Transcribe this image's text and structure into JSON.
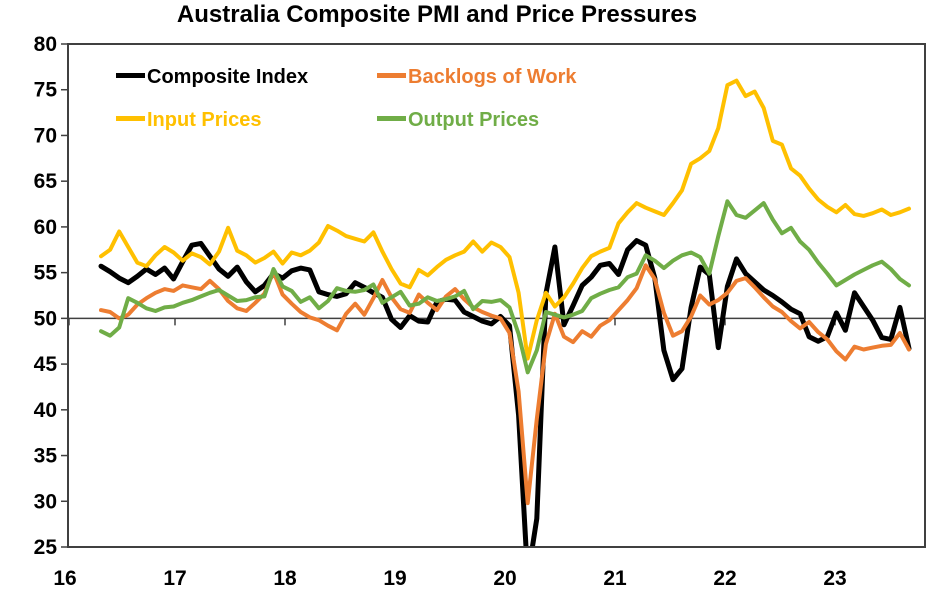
{
  "title": "Australia Composite PMI and Price Pressures",
  "chart_data": {
    "type": "line",
    "frequency": "monthly",
    "x_start": "2016-05",
    "x_end": "2023-10",
    "x_tick_labels": [
      "16",
      "17",
      "18",
      "19",
      "20",
      "21",
      "22",
      "23"
    ],
    "ylim": [
      25,
      80
    ],
    "y_ticks": [
      25,
      30,
      35,
      40,
      45,
      50,
      55,
      60,
      65,
      70,
      75,
      80
    ],
    "reference_line_y": 50,
    "grid": false,
    "legend_position": "top-left-inside",
    "axis_color": "#404040",
    "x": [
      "2016-05",
      "2016-06",
      "2016-07",
      "2016-08",
      "2016-09",
      "2016-10",
      "2016-11",
      "2016-12",
      "2017-01",
      "2017-02",
      "2017-03",
      "2017-04",
      "2017-05",
      "2017-06",
      "2017-07",
      "2017-08",
      "2017-09",
      "2017-10",
      "2017-11",
      "2017-12",
      "2018-01",
      "2018-02",
      "2018-03",
      "2018-04",
      "2018-05",
      "2018-06",
      "2018-07",
      "2018-08",
      "2018-09",
      "2018-10",
      "2018-11",
      "2018-12",
      "2019-01",
      "2019-02",
      "2019-03",
      "2019-04",
      "2019-05",
      "2019-06",
      "2019-07",
      "2019-08",
      "2019-09",
      "2019-10",
      "2019-11",
      "2019-12",
      "2020-01",
      "2020-02",
      "2020-03",
      "2020-04",
      "2020-05",
      "2020-06",
      "2020-07",
      "2020-08",
      "2020-09",
      "2020-10",
      "2020-11",
      "2020-12",
      "2021-01",
      "2021-02",
      "2021-03",
      "2021-04",
      "2021-05",
      "2021-06",
      "2021-07",
      "2021-08",
      "2021-09",
      "2021-10",
      "2021-11",
      "2021-12",
      "2022-01",
      "2022-02",
      "2022-03",
      "2022-04",
      "2022-05",
      "2022-06",
      "2022-07",
      "2022-08",
      "2022-09",
      "2022-10",
      "2022-11",
      "2022-12",
      "2023-01",
      "2023-02",
      "2023-03",
      "2023-04",
      "2023-05",
      "2023-06",
      "2023-07",
      "2023-08",
      "2023-09",
      "2023-10"
    ],
    "series": [
      {
        "name": "Composite Index",
        "color": "#000000",
        "line_width": 5,
        "values": [
          55.7,
          55.1,
          54.4,
          53.9,
          54.6,
          55.4,
          54.8,
          55.5,
          54.3,
          56.2,
          58.0,
          58.2,
          56.8,
          55.4,
          54.6,
          55.6,
          54.0,
          52.9,
          53.6,
          54.9,
          54.4,
          55.2,
          55.5,
          55.3,
          52.9,
          52.6,
          52.4,
          52.7,
          53.9,
          53.4,
          52.8,
          52.3,
          49.9,
          49.0,
          50.3,
          49.7,
          49.6,
          51.8,
          52.1,
          52.0,
          50.7,
          50.2,
          49.7,
          49.4,
          50.2,
          49.2,
          39.4,
          21.7,
          28.1,
          52.7,
          57.8,
          49.3,
          51.4,
          53.6,
          54.5,
          55.8,
          56.0,
          54.8,
          57.5,
          58.5,
          58.0,
          54.4,
          46.5,
          43.3,
          44.5,
          51.2,
          55.6,
          54.8,
          46.8,
          53.5,
          56.5,
          54.9,
          54.0,
          53.1,
          52.5,
          51.8,
          51.0,
          50.5,
          48.0,
          47.5,
          48.0,
          50.6,
          48.7,
          52.8,
          51.3,
          49.8,
          47.9,
          47.7,
          51.2,
          46.7
        ]
      },
      {
        "name": "Backlogs of Work",
        "color": "#ED7D31",
        "line_width": 4,
        "values": [
          50.9,
          50.7,
          50.0,
          50.4,
          51.5,
          52.2,
          52.8,
          53.2,
          53.0,
          53.6,
          53.4,
          53.2,
          54.1,
          53.2,
          51.9,
          51.1,
          50.8,
          51.7,
          52.7,
          55.1,
          52.6,
          51.6,
          50.7,
          50.1,
          49.8,
          49.2,
          48.7,
          50.5,
          51.6,
          50.4,
          52.2,
          54.2,
          52.3,
          51.0,
          50.6,
          52.6,
          51.7,
          50.9,
          52.4,
          53.2,
          52.1,
          51.2,
          50.7,
          50.3,
          50.0,
          48.4,
          42.0,
          29.8,
          39.0,
          47.2,
          50.5,
          48.0,
          47.4,
          48.6,
          48.0,
          49.2,
          49.8,
          50.9,
          52.0,
          53.3,
          55.8,
          54.3,
          50.6,
          48.1,
          48.6,
          50.2,
          52.5,
          51.5,
          52.0,
          52.8,
          54.1,
          54.4,
          53.4,
          52.3,
          51.3,
          50.7,
          49.7,
          48.9,
          49.6,
          48.5,
          47.7,
          46.4,
          45.5,
          46.9,
          46.6,
          46.8,
          47.0,
          47.1,
          48.4,
          46.6
        ]
      },
      {
        "name": "Input Prices",
        "color": "#FFC000",
        "line_width": 4,
        "values": [
          56.8,
          57.5,
          59.5,
          57.8,
          56.1,
          55.7,
          56.9,
          57.8,
          57.2,
          56.3,
          57.1,
          56.7,
          55.9,
          57.3,
          59.9,
          57.4,
          56.9,
          56.1,
          56.6,
          57.3,
          56.0,
          57.2,
          56.9,
          57.4,
          58.3,
          60.1,
          59.6,
          59.0,
          58.7,
          58.4,
          59.4,
          57.3,
          55.4,
          53.8,
          53.4,
          55.3,
          54.7,
          55.6,
          56.4,
          56.9,
          57.3,
          58.4,
          57.3,
          58.3,
          57.8,
          56.7,
          52.8,
          45.6,
          49.8,
          52.8,
          51.3,
          52.3,
          53.8,
          55.5,
          56.8,
          57.3,
          57.7,
          60.4,
          61.6,
          62.6,
          62.1,
          61.7,
          61.3,
          62.6,
          64.0,
          66.9,
          67.5,
          68.3,
          70.8,
          75.5,
          76.0,
          74.3,
          74.8,
          73.0,
          69.4,
          69.0,
          66.4,
          65.6,
          64.2,
          63.0,
          62.2,
          61.6,
          62.4,
          61.4,
          61.2,
          61.5,
          61.9,
          61.3,
          61.6,
          62.0
        ]
      },
      {
        "name": "Output Prices",
        "color": "#70AD47",
        "line_width": 4,
        "values": [
          48.6,
          48.1,
          49.0,
          52.2,
          51.7,
          51.1,
          50.8,
          51.2,
          51.3,
          51.7,
          52.0,
          52.4,
          52.8,
          53.1,
          52.5,
          51.9,
          52.0,
          52.3,
          52.4,
          55.4,
          53.5,
          53.0,
          51.8,
          52.3,
          51.1,
          51.9,
          53.3,
          53.0,
          52.9,
          53.1,
          53.7,
          51.7,
          52.3,
          52.9,
          51.4,
          51.6,
          52.3,
          51.9,
          52.1,
          52.4,
          53.0,
          51.0,
          51.9,
          51.8,
          52.0,
          51.2,
          48.3,
          44.1,
          46.5,
          50.7,
          50.4,
          50.1,
          50.4,
          50.8,
          52.2,
          52.7,
          53.1,
          53.4,
          54.5,
          54.9,
          56.9,
          56.3,
          55.5,
          56.3,
          56.9,
          57.2,
          56.7,
          54.9,
          59.0,
          62.8,
          61.3,
          61.0,
          61.8,
          62.6,
          60.8,
          59.3,
          59.9,
          58.4,
          57.5,
          56.1,
          54.9,
          53.6,
          54.2,
          54.8,
          55.3,
          55.8,
          56.2,
          55.4,
          54.3,
          53.6
        ]
      }
    ]
  }
}
